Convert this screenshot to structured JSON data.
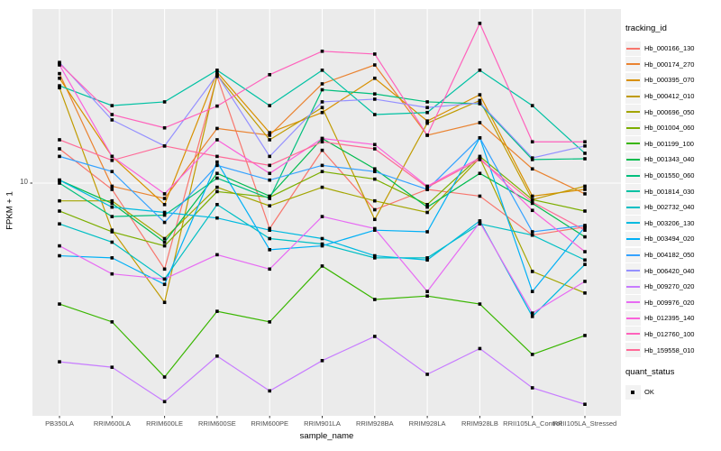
{
  "chart_data": {
    "type": "line",
    "title": "",
    "xlabel": "sample_name",
    "ylabel": "FPKM + 1",
    "y_scale": "log10",
    "y_tick_labels": [
      "10"
    ],
    "y_tick_values": [
      10
    ],
    "ylim": [
      1.02,
      55
    ],
    "grid": "major",
    "panel_background": "#EBEBEB",
    "gridline_color": "#FFFFFF",
    "tick_color": "#333333",
    "tick_label_color": "#4D4D4D",
    "point_shape": "black-square",
    "point_color": "#000000",
    "legend_position": "right",
    "categories": [
      "PB350LA",
      "RRIM600LA",
      "RRIM600LE",
      "RRIM600SE",
      "RRIM600PE",
      "RRIM901LA",
      "RRIM928BA",
      "RRIM928LA",
      "RRIM928LB",
      "RRII105LA_Control",
      "RRII105LA_Stressed"
    ],
    "series": [
      {
        "name": "Hb_000166_130",
        "color": "#F8766D",
        "values": [
          14,
          9.4,
          4.3,
          28.5,
          6.4,
          13.8,
          7.7,
          9.4,
          8.8,
          6.0,
          6.5
        ]
      },
      {
        "name": "Hb_000174_270",
        "color": "#EA8331",
        "values": [
          29.3,
          9.7,
          8.6,
          17.1,
          16.0,
          26.5,
          31.9,
          16.0,
          18.1,
          11.5,
          9.0
        ]
      },
      {
        "name": "Hb_000395_070",
        "color": "#D89000",
        "values": [
          28.0,
          13.0,
          8.1,
          29.7,
          16.4,
          20.0,
          28.0,
          18.4,
          23.8,
          8.8,
          9.4
        ]
      },
      {
        "name": "Hb_000412_010",
        "color": "#C09B00",
        "values": [
          25.5,
          6.3,
          3.1,
          28.9,
          15.3,
          21.0,
          7.0,
          18.0,
          22.5,
          8.5,
          9.7
        ]
      },
      {
        "name": "Hb_000696_050",
        "color": "#A3A500",
        "values": [
          8.4,
          8.4,
          5.8,
          9.6,
          8.0,
          9.6,
          8.4,
          7.5,
          12.8,
          4.2,
          3.4
        ]
      },
      {
        "name": "Hb_001004_060",
        "color": "#7CAE00",
        "values": [
          7.6,
          6.2,
          5.4,
          9.2,
          8.7,
          11.2,
          10.4,
          8.1,
          13.0,
          8.5,
          7.6
        ]
      },
      {
        "name": "Hb_001199_100",
        "color": "#39B600",
        "values": [
          3.05,
          2.56,
          1.49,
          2.84,
          2.56,
          4.43,
          3.19,
          3.3,
          3.05,
          1.86,
          2.24
        ]
      },
      {
        "name": "Hb_001343_040",
        "color": "#00BB4E",
        "values": [
          10.3,
          8.2,
          5.6,
          11.0,
          8.8,
          15.5,
          11.5,
          7.9,
          11.0,
          8.2,
          5.9
        ]
      },
      {
        "name": "Hb_001550_060",
        "color": "#00BF7D",
        "values": [
          10.0,
          7.2,
          7.3,
          10.5,
          8.6,
          25.0,
          24.0,
          22.2,
          21.8,
          12.6,
          12.7
        ]
      },
      {
        "name": "Hb_001814_030",
        "color": "#00C1A3",
        "values": [
          26.0,
          21.4,
          22.2,
          30.3,
          21.4,
          30.3,
          19.6,
          20.0,
          30.3,
          21.4,
          13.4
        ]
      },
      {
        "name": "Hb_002732_040",
        "color": "#00BFC4",
        "values": [
          6.7,
          5.6,
          3.9,
          8.1,
          5.8,
          5.5,
          4.8,
          4.8,
          6.7,
          6.0,
          4.7
        ]
      },
      {
        "name": "Hb_003206_130",
        "color": "#00BAE0",
        "values": [
          10.3,
          7.9,
          7.5,
          7.1,
          6.3,
          5.8,
          4.9,
          4.7,
          6.9,
          2.7,
          4.5
        ]
      },
      {
        "name": "Hb_003494_020",
        "color": "#00B0F6",
        "values": [
          4.9,
          4.8,
          3.7,
          12.3,
          5.2,
          5.4,
          6.3,
          6.2,
          15.6,
          3.45,
          6.5
        ]
      },
      {
        "name": "Hb_004182_050",
        "color": "#35A2FF",
        "values": [
          13.0,
          11.2,
          6.8,
          11.9,
          10.3,
          11.9,
          11.2,
          9.4,
          15.6,
          6.2,
          6.6
        ]
      },
      {
        "name": "Hb_006420_040",
        "color": "#9590FF",
        "values": [
          32.7,
          18.6,
          14.4,
          29.0,
          13.0,
          22.2,
          22.8,
          21.0,
          22.0,
          12.8,
          14.4
        ]
      },
      {
        "name": "Hb_009270_020",
        "color": "#C77CFF",
        "values": [
          1.73,
          1.64,
          1.17,
          1.83,
          1.3,
          1.75,
          2.22,
          1.53,
          1.97,
          1.34,
          1.14
        ]
      },
      {
        "name": "Hb_009976_020",
        "color": "#E76BF3",
        "values": [
          5.4,
          4.1,
          3.9,
          4.95,
          4.3,
          7.2,
          6.4,
          3.45,
          6.8,
          2.79,
          3.81
        ]
      },
      {
        "name": "Hb_012395_140",
        "color": "#FA62DB",
        "values": [
          31.9,
          13.0,
          9.0,
          15.3,
          11.0,
          15.5,
          14.6,
          9.7,
          12.8,
          7.65,
          5.1
        ]
      },
      {
        "name": "Hb_012760_100",
        "color": "#FF62BC",
        "values": [
          32.3,
          19.6,
          17.2,
          21.3,
          29.0,
          36.5,
          35.5,
          16.0,
          48.0,
          15.0,
          15.0
        ]
      },
      {
        "name": "Hb_159558_010",
        "color": "#FF6A98",
        "values": [
          15.3,
          12.5,
          14.4,
          13.0,
          11.9,
          15.0,
          14.0,
          9.6,
          12.6,
          8.3,
          6.3
        ]
      }
    ]
  },
  "axes": {
    "y_tick_label": "10",
    "x_title": "sample_name",
    "y_title": "FPKM + 1"
  },
  "legend": {
    "title": "tracking_id"
  },
  "quant_legend": {
    "title": "quant_status",
    "items": [
      "OK"
    ]
  }
}
